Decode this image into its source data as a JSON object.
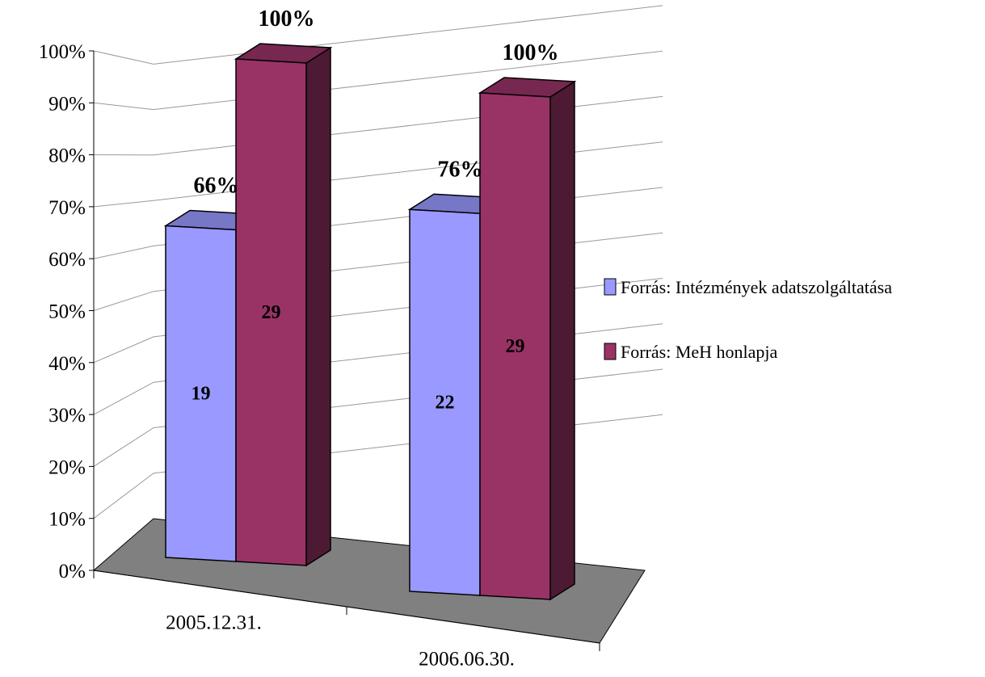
{
  "chart_data": {
    "type": "bar",
    "style": "3d-clustered-column",
    "categories": [
      "2005.12.31.",
      "2006.06.30."
    ],
    "series": [
      {
        "name": "Forrás: Intézmények adatszolgáltatása",
        "values": [
          66,
          76
        ],
        "counts": [
          "19",
          "22"
        ],
        "top_labels": [
          "66%",
          "76%"
        ],
        "color": "#9999FF"
      },
      {
        "name": "Forrás: MeH honlapja",
        "values": [
          100,
          100
        ],
        "counts": [
          "29",
          "29"
        ],
        "top_labels": [
          "100%",
          "100%"
        ],
        "color": "#993366"
      }
    ],
    "y_ticks": [
      "0%",
      "10%",
      "20%",
      "30%",
      "40%",
      "50%",
      "60%",
      "70%",
      "80%",
      "90%",
      "100%"
    ],
    "ylim": [
      0,
      100
    ],
    "grid": true,
    "legend_position": "right",
    "floor_color": "#808080"
  }
}
